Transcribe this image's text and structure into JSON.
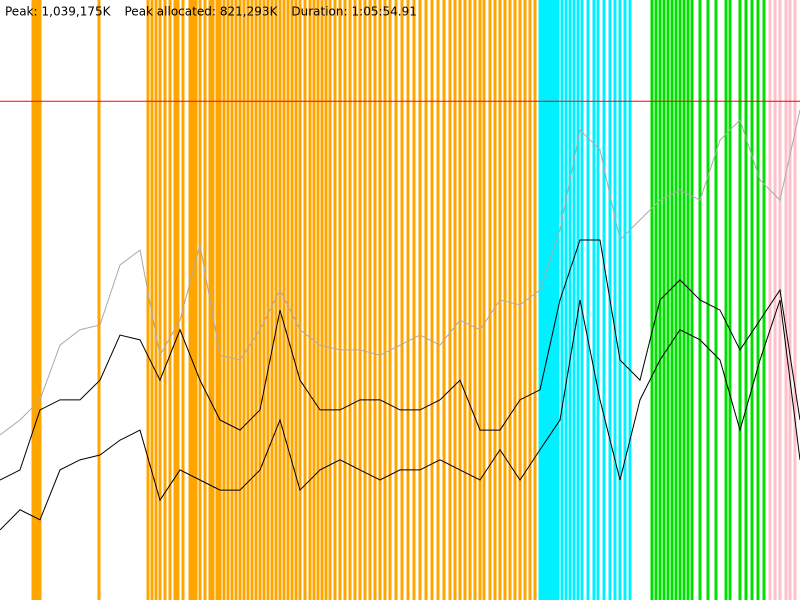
{
  "chart_data": {
    "type": "line",
    "stats": [
      {
        "label": "Peak:",
        "value": "1,039,175K"
      },
      {
        "label": "Peak allocated:",
        "value": "821,293K"
      },
      {
        "label": "Duration:",
        "value": "1:05:54.91"
      }
    ],
    "xlim": [
      0,
      800
    ],
    "ylim": [
      0,
      1250000
    ],
    "peak_line": 1039175,
    "peak_color": "#ff0000",
    "x": [
      0,
      20,
      40,
      60,
      80,
      100,
      120,
      140,
      160,
      180,
      200,
      220,
      240,
      260,
      280,
      300,
      320,
      340,
      360,
      380,
      400,
      420,
      440,
      460,
      480,
      500,
      520,
      540,
      560,
      580,
      600,
      620,
      640,
      660,
      680,
      700,
      720,
      740,
      760,
      780,
      800
    ],
    "series": [
      {
        "color": "#aaaaaa",
        "values": [
          344000,
          375000,
          417000,
          531000,
          563000,
          573000,
          698000,
          729000,
          510000,
          583000,
          740000,
          510000,
          500000,
          563000,
          646000,
          563000,
          531000,
          521000,
          521000,
          510000,
          531000,
          552000,
          531000,
          583000,
          563000,
          625000,
          615000,
          646000,
          771000,
          979000,
          938000,
          750000,
          792000,
          833000,
          854000,
          833000,
          958000,
          1000000,
          875000,
          833000,
          1021000
        ]
      },
      {
        "color": "#000000",
        "values": [
          250000,
          271000,
          396000,
          417000,
          417000,
          458000,
          552000,
          542000,
          458000,
          563000,
          458000,
          375000,
          354000,
          396000,
          604000,
          458000,
          396000,
          396000,
          417000,
          417000,
          396000,
          396000,
          417000,
          458000,
          354000,
          354000,
          417000,
          438000,
          625000,
          750000,
          750000,
          500000,
          458000,
          625000,
          667000,
          625000,
          604000,
          521000,
          583000,
          646000,
          375000
        ]
      },
      {
        "color": "#000000",
        "values": [
          146000,
          188000,
          167000,
          271000,
          292000,
          302000,
          333000,
          354000,
          208000,
          271000,
          250000,
          229000,
          229000,
          271000,
          375000,
          229000,
          271000,
          292000,
          271000,
          250000,
          271000,
          271000,
          292000,
          271000,
          250000,
          313000,
          250000,
          313000,
          375000,
          625000,
          417000,
          250000,
          417000,
          500000,
          563000,
          542000,
          500000,
          354000,
          500000,
          625000,
          292000
        ]
      }
    ],
    "events": [
      {
        "color": "#ffa500",
        "x": [
          33,
          35,
          37,
          40,
          99,
          148,
          152,
          156,
          160,
          165,
          170,
          175,
          178,
          183,
          190,
          193,
          196,
          200,
          205,
          210,
          213,
          217,
          220,
          224,
          228,
          232,
          236,
          240,
          244,
          248,
          252,
          256,
          260,
          264,
          268,
          272,
          276,
          280,
          284,
          288,
          292,
          296,
          300,
          305,
          310,
          314,
          318,
          322,
          326,
          330,
          335,
          340,
          345,
          350,
          355,
          360,
          365,
          370,
          375,
          380,
          385,
          390,
          396,
          402,
          408,
          414,
          420,
          426,
          432,
          438,
          444,
          450,
          455,
          460,
          465,
          470,
          475,
          480,
          484,
          490,
          495,
          500,
          505,
          510,
          515,
          520,
          525,
          530,
          535
        ]
      },
      {
        "color": "#00f0ff",
        "x": [
          540,
          543,
          546,
          549,
          552,
          555,
          558,
          562,
          566,
          570,
          574,
          578,
          582,
          588,
          594,
          598,
          604,
          610,
          615,
          620,
          625,
          630
        ]
      },
      {
        "color": "#00e000",
        "x": [
          652,
          656,
          660,
          664,
          668,
          672,
          676,
          680,
          684,
          688,
          692,
          700,
          708,
          716,
          726,
          730,
          740,
          746,
          752,
          758,
          764
        ]
      },
      {
        "color": "#ffc0cb",
        "x": [
          770,
          775,
          780,
          786,
          790,
          795
        ]
      }
    ]
  }
}
